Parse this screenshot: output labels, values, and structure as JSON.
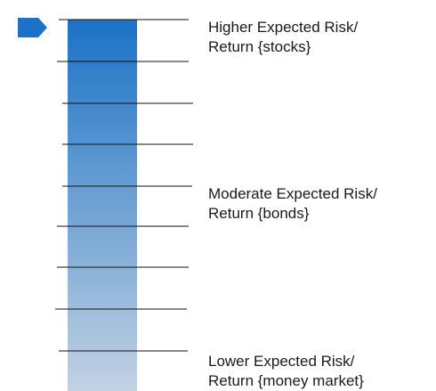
{
  "colors": {
    "bar_top": "#1b72c6",
    "bar_bottom": "#c3d2e2",
    "marker": "#1b72c6",
    "line": "#111111"
  },
  "marker": {
    "icon": "pentagon-arrow-icon",
    "position_fraction": 1.0
  },
  "levels": [
    {
      "line1": "Higher Expected Risk/",
      "line2": "Return {stocks}"
    },
    {
      "line1": "Moderate Expected Risk/",
      "line2": "Return {bonds}"
    },
    {
      "line1": "Lower Expected Risk/",
      "line2": "Return {money market}"
    }
  ]
}
